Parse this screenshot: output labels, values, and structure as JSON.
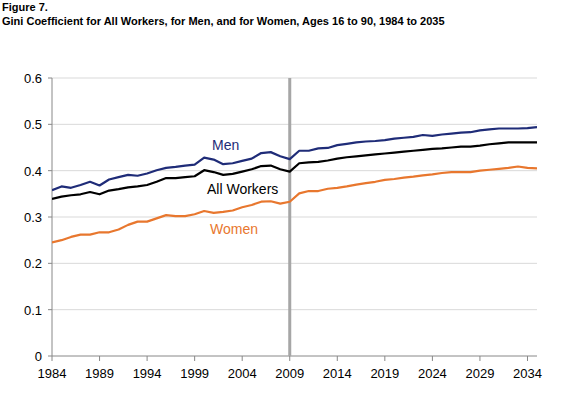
{
  "chart_data": {
    "type": "line",
    "title": "Figure 7.",
    "subtitle": "Gini Coefficient for All Workers, for Men, and for Women, Ages 16 to 90, 1984 to 2035",
    "x": [
      1984,
      1985,
      1986,
      1987,
      1988,
      1989,
      1990,
      1991,
      1992,
      1993,
      1994,
      1995,
      1996,
      1997,
      1998,
      1999,
      2000,
      2001,
      2002,
      2003,
      2004,
      2005,
      2006,
      2007,
      2008,
      2009,
      2010,
      2011,
      2012,
      2013,
      2014,
      2015,
      2016,
      2017,
      2018,
      2019,
      2020,
      2021,
      2022,
      2023,
      2024,
      2025,
      2026,
      2027,
      2028,
      2029,
      2030,
      2031,
      2032,
      2033,
      2034,
      2035
    ],
    "series": [
      {
        "name": "Men",
        "color": "#1f2c78",
        "values": [
          0.358,
          0.366,
          0.363,
          0.369,
          0.376,
          0.368,
          0.381,
          0.386,
          0.391,
          0.389,
          0.394,
          0.401,
          0.406,
          0.408,
          0.411,
          0.413,
          0.428,
          0.424,
          0.414,
          0.416,
          0.421,
          0.426,
          0.438,
          0.44,
          0.431,
          0.425,
          0.443,
          0.443,
          0.448,
          0.449,
          0.455,
          0.458,
          0.461,
          0.463,
          0.464,
          0.466,
          0.469,
          0.471,
          0.473,
          0.477,
          0.475,
          0.478,
          0.48,
          0.482,
          0.483,
          0.487,
          0.489,
          0.491,
          0.491,
          0.491,
          0.492,
          0.494
        ]
      },
      {
        "name": "All Workers",
        "color": "#000000",
        "values": [
          0.339,
          0.344,
          0.347,
          0.349,
          0.354,
          0.349,
          0.357,
          0.36,
          0.364,
          0.366,
          0.369,
          0.376,
          0.384,
          0.384,
          0.386,
          0.388,
          0.401,
          0.397,
          0.391,
          0.393,
          0.398,
          0.403,
          0.41,
          0.411,
          0.403,
          0.398,
          0.416,
          0.418,
          0.419,
          0.422,
          0.426,
          0.429,
          0.431,
          0.433,
          0.435,
          0.437,
          0.439,
          0.441,
          0.443,
          0.445,
          0.447,
          0.448,
          0.45,
          0.452,
          0.452,
          0.454,
          0.457,
          0.459,
          0.461,
          0.461,
          0.461,
          0.461
        ]
      },
      {
        "name": "Women",
        "color": "#e8772e",
        "values": [
          0.245,
          0.25,
          0.257,
          0.262,
          0.262,
          0.267,
          0.267,
          0.273,
          0.283,
          0.29,
          0.29,
          0.297,
          0.304,
          0.302,
          0.302,
          0.306,
          0.313,
          0.309,
          0.311,
          0.314,
          0.321,
          0.326,
          0.333,
          0.334,
          0.329,
          0.333,
          0.351,
          0.356,
          0.356,
          0.361,
          0.363,
          0.366,
          0.37,
          0.373,
          0.376,
          0.38,
          0.382,
          0.385,
          0.387,
          0.39,
          0.392,
          0.395,
          0.397,
          0.397,
          0.397,
          0.4,
          0.402,
          0.404,
          0.406,
          0.409,
          0.406,
          0.405
        ]
      }
    ],
    "reference_line": 2009,
    "xlim": [
      1984,
      2035
    ],
    "xticks": [
      1984,
      1989,
      1994,
      1999,
      2004,
      2009,
      2014,
      2019,
      2024,
      2029,
      2034
    ],
    "ylim": [
      0,
      0.6
    ],
    "yticks": [
      0,
      0.1,
      0.2,
      0.3,
      0.4,
      0.5,
      0.6
    ],
    "grid": true
  }
}
